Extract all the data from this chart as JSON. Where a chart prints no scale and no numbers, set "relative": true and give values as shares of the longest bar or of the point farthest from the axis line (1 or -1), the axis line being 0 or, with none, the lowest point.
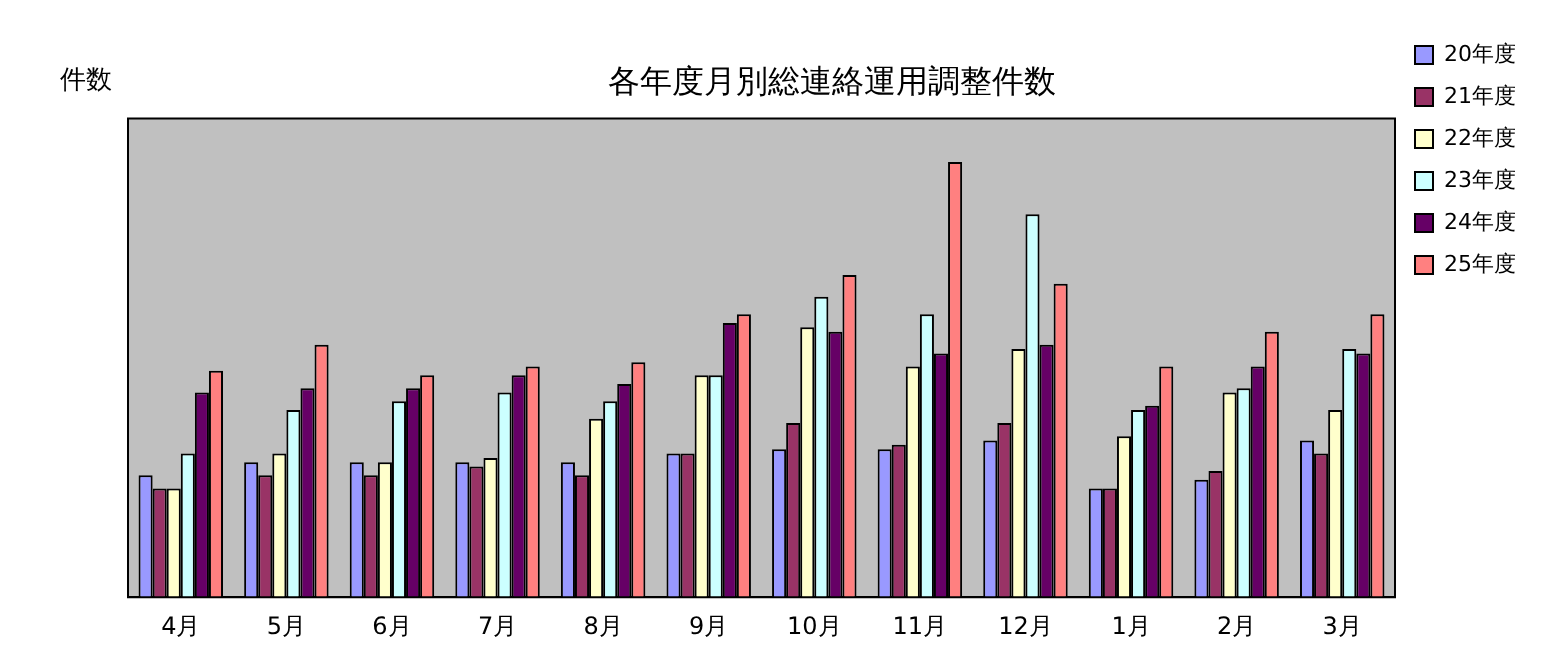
{
  "chart_data": {
    "type": "bar",
    "title": "各年度月別総連絡運用調整件数",
    "ylabel": "件数",
    "relative": true,
    "categories": [
      "4月",
      "5月",
      "6月",
      "7月",
      "8月",
      "9月",
      "10月",
      "11月",
      "12月",
      "1月",
      "2月",
      "3月"
    ],
    "series": [
      {
        "name": "20年度",
        "color": "#9999ff",
        "values": [
          0.28,
          0.31,
          0.31,
          0.31,
          0.31,
          0.33,
          0.34,
          0.34,
          0.36,
          0.25,
          0.27,
          0.36
        ]
      },
      {
        "name": "21年度",
        "color": "#993366",
        "values": [
          0.25,
          0.28,
          0.28,
          0.3,
          0.28,
          0.33,
          0.4,
          0.35,
          0.4,
          0.25,
          0.29,
          0.33
        ]
      },
      {
        "name": "22年度",
        "color": "#ffffcc",
        "values": [
          0.25,
          0.33,
          0.31,
          0.32,
          0.41,
          0.51,
          0.62,
          0.53,
          0.57,
          0.37,
          0.47,
          0.43
        ]
      },
      {
        "name": "23年度",
        "color": "#ccffff",
        "values": [
          0.33,
          0.43,
          0.45,
          0.47,
          0.45,
          0.51,
          0.69,
          0.65,
          0.88,
          0.43,
          0.48,
          0.57
        ]
      },
      {
        "name": "24年度",
        "color": "#660066",
        "values": [
          0.47,
          0.48,
          0.48,
          0.51,
          0.49,
          0.63,
          0.61,
          0.56,
          0.58,
          0.44,
          0.53,
          0.56
        ]
      },
      {
        "name": "25年度",
        "color": "#ff8080",
        "values": [
          0.52,
          0.58,
          0.51,
          0.53,
          0.54,
          0.65,
          0.74,
          1,
          0.72,
          0.53,
          0.61,
          0.65
        ]
      }
    ],
    "legend": "top right"
  }
}
